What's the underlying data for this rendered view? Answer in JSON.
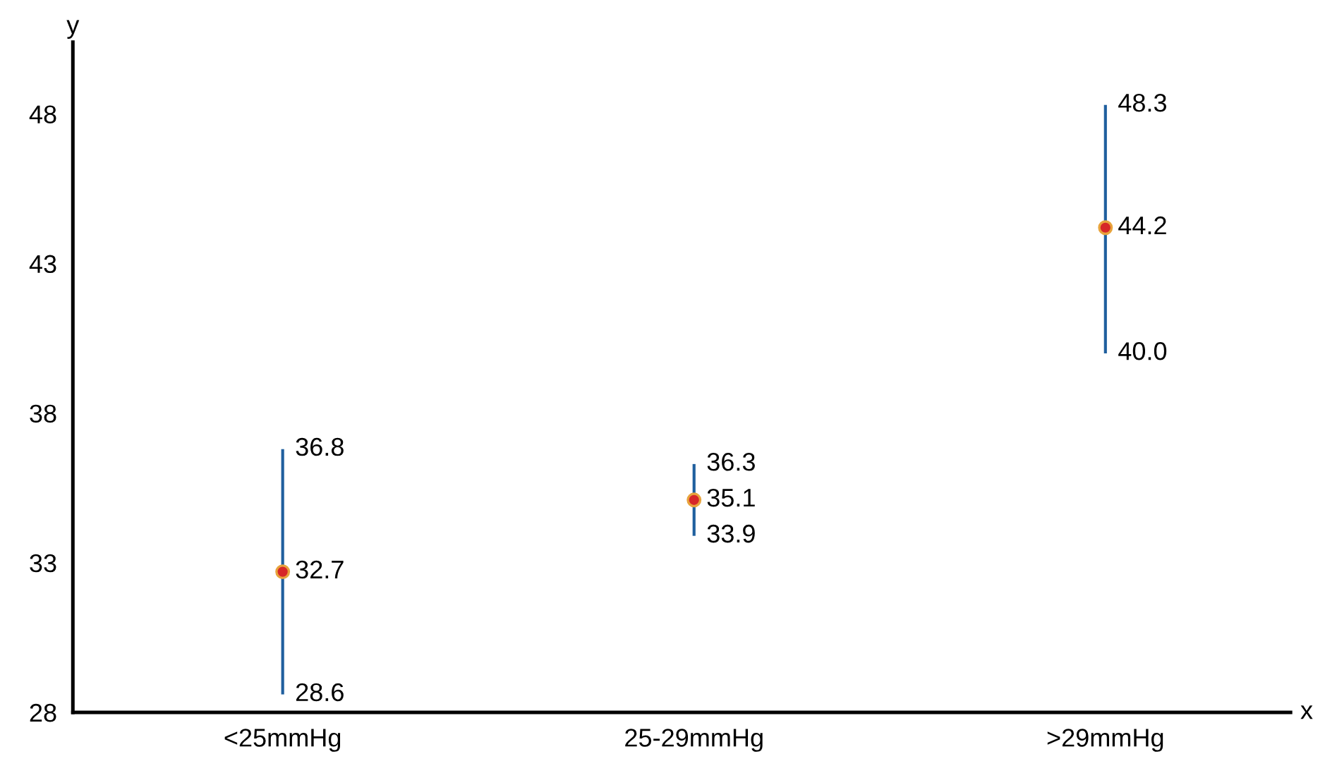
{
  "chart_data": {
    "type": "scatter",
    "xlabel": "x",
    "ylabel": "y",
    "categories": [
      "<25mmHg",
      "25-29mmHg",
      ">29mmHg"
    ],
    "series": [
      {
        "color": "#d62728",
        "values": [
          32.7,
          35.1,
          44.2
        ],
        "errors": [
          [
            28.6,
            36.8
          ],
          [
            33.9,
            36.3
          ],
          [
            40.0,
            48.3
          ]
        ]
      }
    ],
    "ylim": [
      28,
      50.4
    ],
    "yticks": [
      28,
      33,
      38,
      43,
      48
    ],
    "annotations": [
      {
        "text": "36.8",
        "x": "<25mmHg",
        "y": 36.8
      },
      {
        "text": "28.6",
        "x": "<25mmHg",
        "y": 28.6
      },
      {
        "text": "36.3",
        "x": "25-29mmHg",
        "y": 36.3
      },
      {
        "text": "33.9",
        "x": "25-29mmHg",
        "y": 33.9
      },
      {
        "text": "48.3",
        "x": ">29mmHg",
        "y": 48.3
      },
      {
        "text": "40.0",
        "x": ">29mmHg",
        "y": 40.0
      }
    ],
    "marker": "circle",
    "data_labels": true,
    "grid": false,
    "legend": false
  }
}
